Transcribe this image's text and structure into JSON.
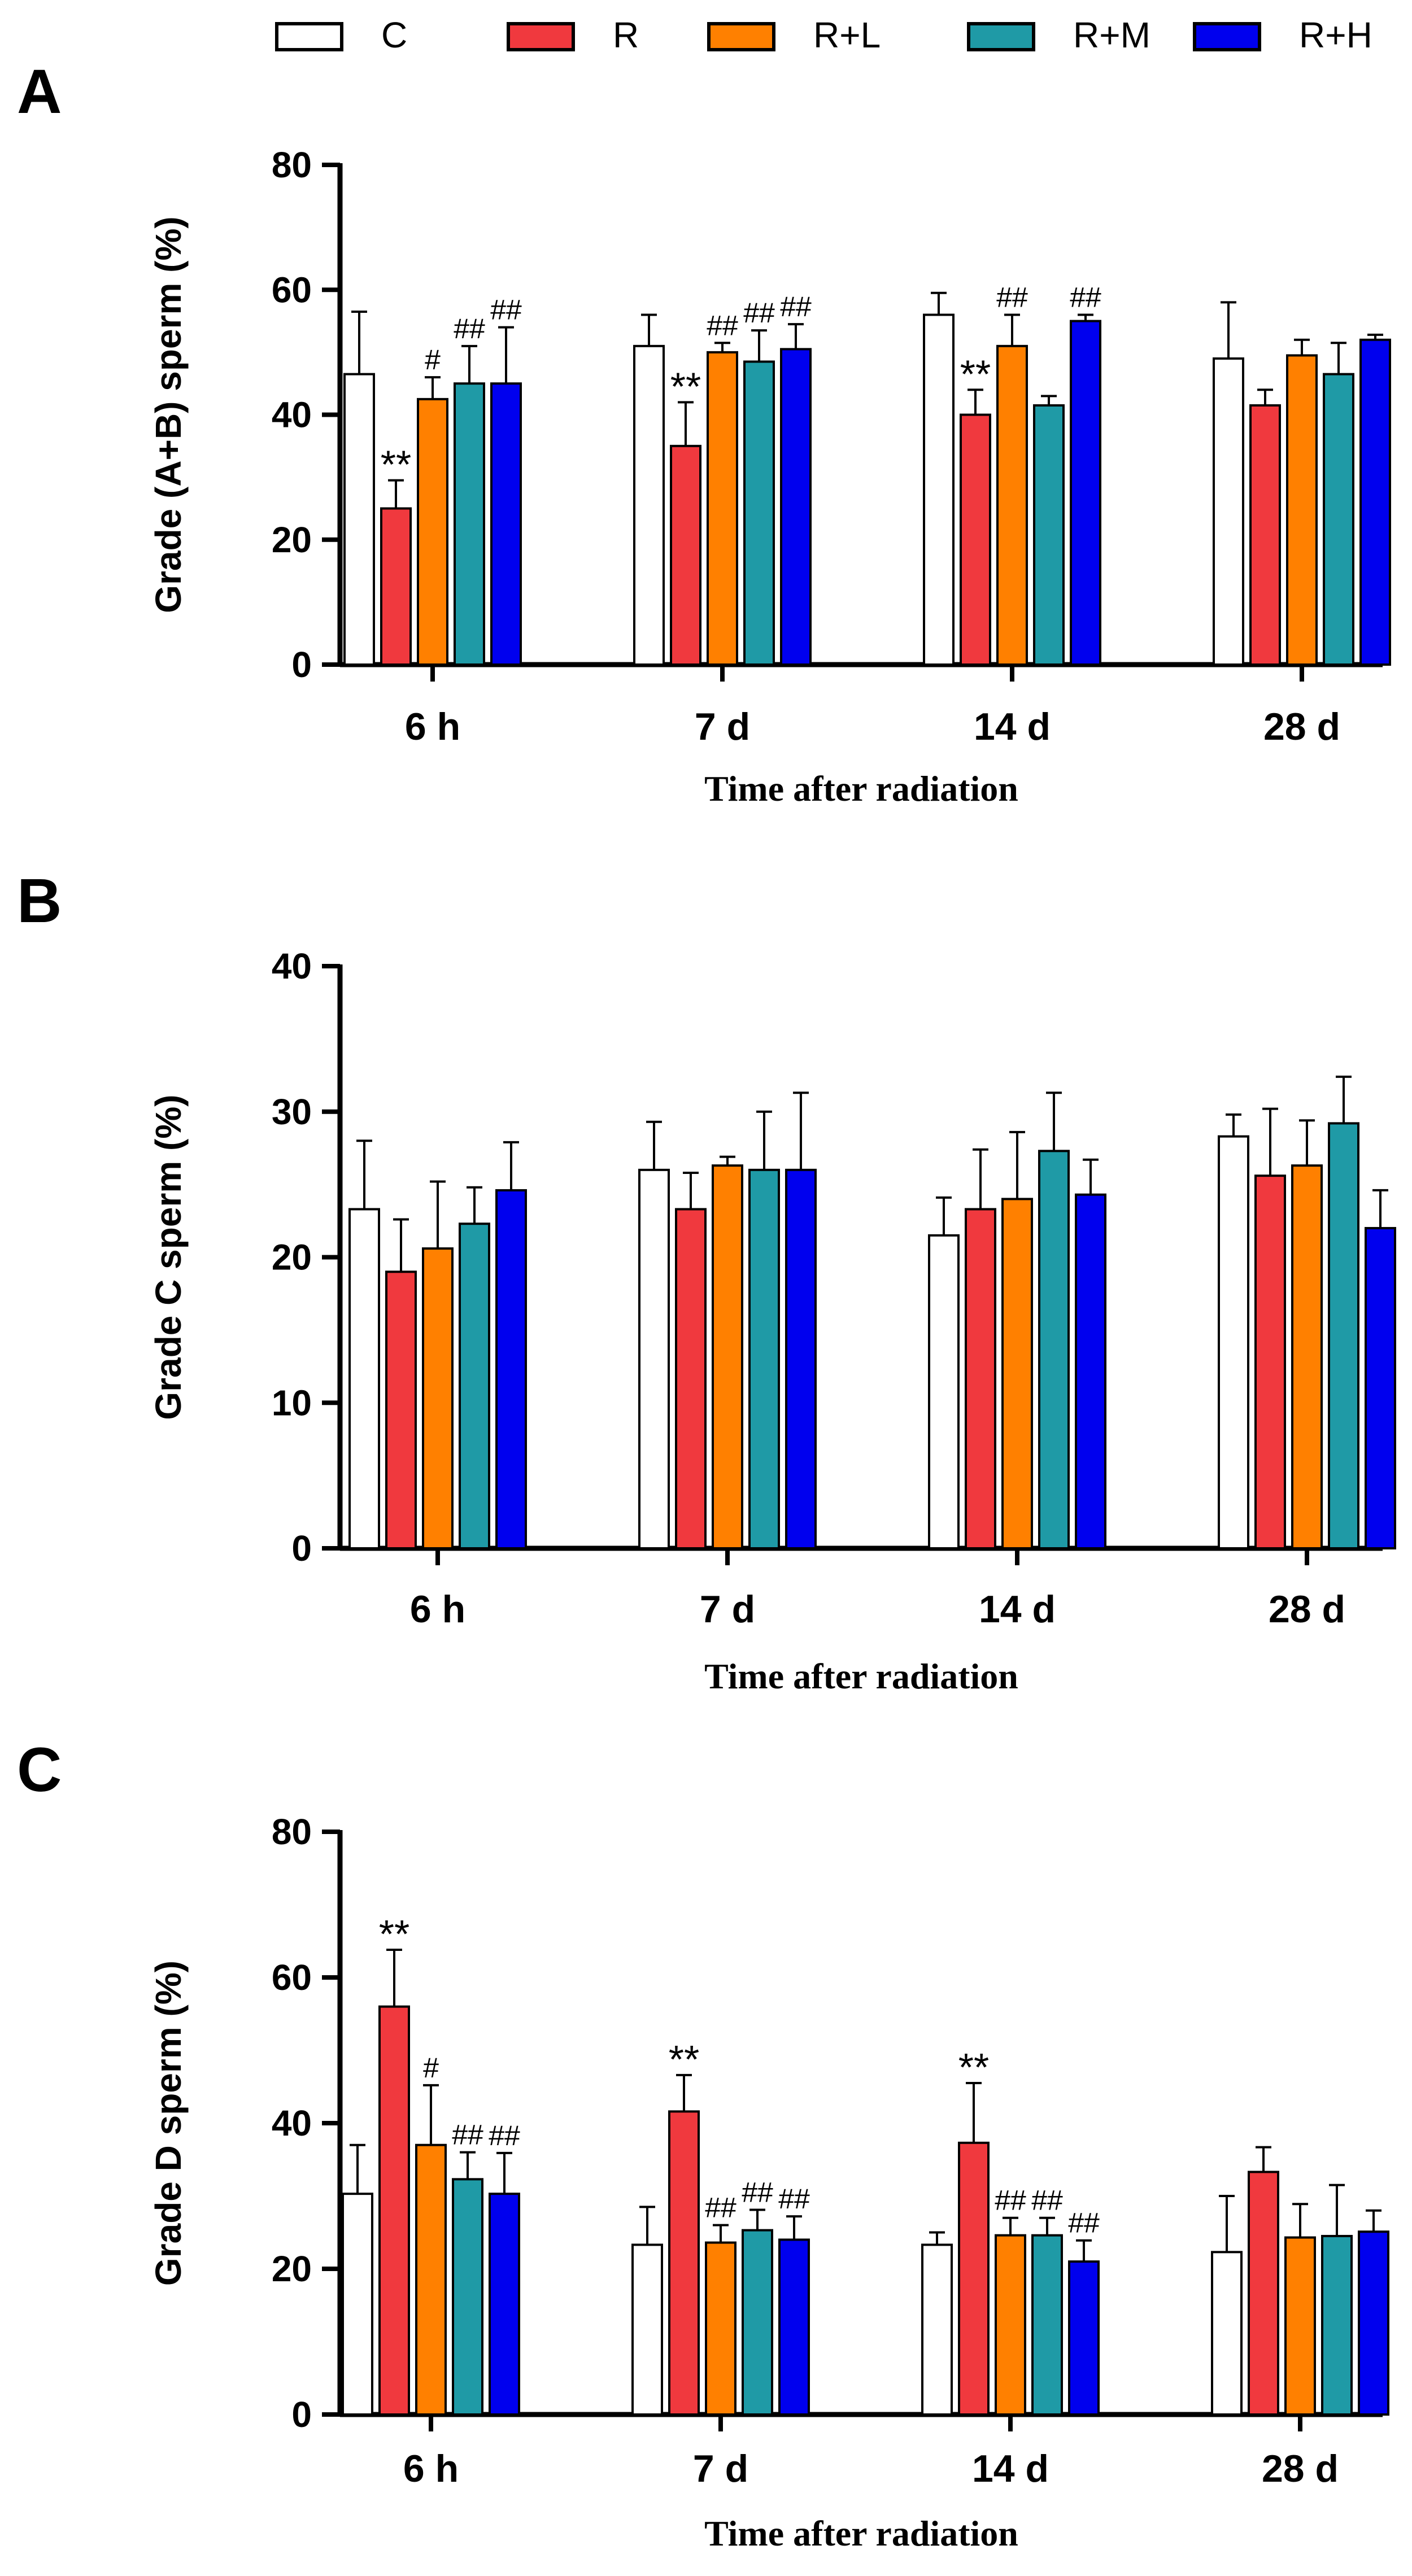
{
  "legend": {
    "items": [
      {
        "label": "C",
        "color": "#ffffff"
      },
      {
        "label": "R",
        "color": "#f0393e"
      },
      {
        "label": "R+L",
        "color": "#ff8000"
      },
      {
        "label": "R+M",
        "color": "#1f9aa6"
      },
      {
        "label": "R+H",
        "color": "#0000ee"
      }
    ]
  },
  "chart_data": [
    {
      "type": "bar",
      "panel_label": "A",
      "categories": [
        "6 h",
        "7 d",
        "14 d",
        "28 d"
      ],
      "xlabel": "Time after radiation",
      "ylabel": "Grade (A+B) sperm (%)",
      "ylim": [
        0,
        80
      ],
      "yticks": [
        0,
        20,
        40,
        60,
        80
      ],
      "series": [
        {
          "name": "C",
          "color": "#ffffff",
          "values": [
            46.5,
            51,
            56,
            49
          ],
          "errors": [
            10,
            5,
            3.5,
            9
          ],
          "annotations": [
            "",
            "",
            "",
            ""
          ]
        },
        {
          "name": "R",
          "color": "#f0393e",
          "values": [
            25,
            35,
            40,
            41.5
          ],
          "errors": [
            4.5,
            7,
            4,
            2.5
          ],
          "annotations": [
            "**",
            "**",
            "**",
            ""
          ]
        },
        {
          "name": "R+L",
          "color": "#ff8000",
          "values": [
            42.5,
            50,
            51,
            49.5
          ],
          "errors": [
            3.5,
            1.5,
            5,
            2.5
          ],
          "annotations": [
            "#",
            "##",
            "##",
            ""
          ]
        },
        {
          "name": "R+M",
          "color": "#1f9aa6",
          "values": [
            45,
            48.5,
            41.5,
            46.5
          ],
          "errors": [
            6,
            5,
            1.5,
            5
          ],
          "annotations": [
            "##",
            "##",
            "",
            ""
          ]
        },
        {
          "name": "R+H",
          "color": "#0000ee",
          "values": [
            45,
            50.5,
            55,
            52
          ],
          "errors": [
            9,
            4,
            1,
            0.8
          ],
          "annotations": [
            "##",
            "##",
            "##",
            ""
          ]
        }
      ]
    },
    {
      "type": "bar",
      "panel_label": "B",
      "categories": [
        "6 h",
        "7 d",
        "14 d",
        "28 d"
      ],
      "xlabel": "Time after radiation",
      "ylabel": "Grade C sperm (%)",
      "ylim": [
        0,
        40
      ],
      "yticks": [
        0,
        10,
        20,
        30,
        40
      ],
      "series": [
        {
          "name": "C",
          "color": "#ffffff",
          "values": [
            23.3,
            26,
            21.5,
            28.3
          ],
          "errors": [
            4.7,
            3.3,
            2.6,
            1.5
          ],
          "annotations": [
            "",
            "",
            "",
            ""
          ]
        },
        {
          "name": "R",
          "color": "#f0393e",
          "values": [
            19,
            23.3,
            23.3,
            25.6
          ],
          "errors": [
            3.6,
            2.5,
            4.1,
            4.6
          ],
          "annotations": [
            "",
            "",
            "",
            ""
          ]
        },
        {
          "name": "R+L",
          "color": "#ff8000",
          "values": [
            20.6,
            26.3,
            24,
            26.3
          ],
          "errors": [
            4.6,
            0.6,
            4.6,
            3.1
          ],
          "annotations": [
            "",
            "",
            "",
            ""
          ]
        },
        {
          "name": "R+M",
          "color": "#1f9aa6",
          "values": [
            22.3,
            26,
            27.3,
            29.2
          ],
          "errors": [
            2.5,
            4,
            4,
            3.2
          ],
          "annotations": [
            "",
            "",
            "",
            ""
          ]
        },
        {
          "name": "R+H",
          "color": "#0000ee",
          "values": [
            24.6,
            26,
            24.3,
            22
          ],
          "errors": [
            3.3,
            5.3,
            2.4,
            2.6
          ],
          "annotations": [
            "",
            "",
            "",
            ""
          ]
        }
      ]
    },
    {
      "type": "bar",
      "panel_label": "C",
      "categories": [
        "6 h",
        "7 d",
        "14 d",
        "28 d"
      ],
      "xlabel": "Time after radiation",
      "ylabel": "Grade D sperm (%)",
      "ylim": [
        0,
        80
      ],
      "yticks": [
        0,
        20,
        40,
        60,
        80
      ],
      "series": [
        {
          "name": "C",
          "color": "#ffffff",
          "values": [
            30.3,
            23.3,
            23.3,
            22.3
          ],
          "errors": [
            6.7,
            5.2,
            1.7,
            7.7
          ],
          "annotations": [
            "",
            "",
            "",
            ""
          ]
        },
        {
          "name": "R",
          "color": "#f0393e",
          "values": [
            56,
            41.6,
            37.3,
            33.3
          ],
          "errors": [
            7.8,
            5,
            8.2,
            3.4
          ],
          "annotations": [
            "**",
            "**",
            "**",
            ""
          ]
        },
        {
          "name": "R+L",
          "color": "#ff8000",
          "values": [
            37,
            23.6,
            24.6,
            24.3
          ],
          "errors": [
            8.2,
            2.4,
            2.4,
            4.6
          ],
          "annotations": [
            "#",
            "##",
            "##",
            ""
          ]
        },
        {
          "name": "R+M",
          "color": "#1f9aa6",
          "values": [
            32.3,
            25.3,
            24.6,
            24.5
          ],
          "errors": [
            3.7,
            2.8,
            2.4,
            7
          ],
          "annotations": [
            "##",
            "##",
            "##",
            ""
          ]
        },
        {
          "name": "R+H",
          "color": "#0000ee",
          "values": [
            30.3,
            24,
            21,
            25.1
          ],
          "errors": [
            5.6,
            3.2,
            2.9,
            2.9
          ],
          "annotations": [
            "##",
            "##",
            "##",
            ""
          ]
        }
      ]
    }
  ]
}
